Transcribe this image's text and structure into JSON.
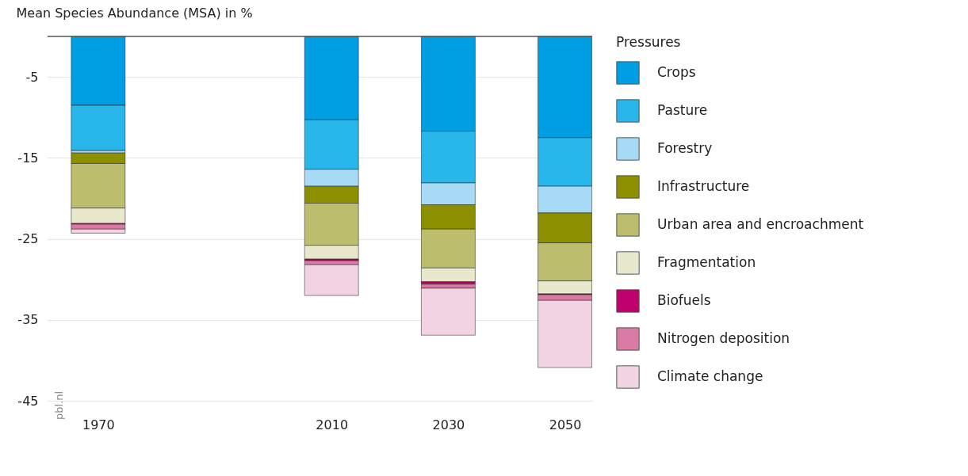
{
  "chart_data": {
    "type": "bar",
    "stacked": true,
    "ylabel": "Mean Species Abundance (MSA) in %",
    "legend_title": "Pressures",
    "x": [
      1970,
      2010,
      2030,
      2050
    ],
    "series": [
      {
        "name": "Crops",
        "color": "#009fe3",
        "values": [
          -8.5,
          -10.3,
          -11.7,
          -12.5
        ]
      },
      {
        "name": "Pasture",
        "color": "#29b6ea",
        "values": [
          -5.6,
          -6.1,
          -6.4,
          -6.0
        ]
      },
      {
        "name": "Forestry",
        "color": "#a6daf5",
        "values": [
          -0.3,
          -2.1,
          -2.7,
          -3.3
        ]
      },
      {
        "name": "Infrastructure",
        "color": "#8c8f00",
        "values": [
          -1.3,
          -2.1,
          -3.0,
          -3.7
        ]
      },
      {
        "name": "Urban area and encroachment",
        "color": "#bdbd6e",
        "values": [
          -5.5,
          -5.2,
          -4.8,
          -4.7
        ]
      },
      {
        "name": "Fragmentation",
        "color": "#e8e8cc",
        "values": [
          -1.9,
          -1.7,
          -1.7,
          -1.6
        ]
      },
      {
        "name": "Biofuels",
        "color": "#c0006d",
        "values": [
          -0.1,
          -0.2,
          -0.3,
          -0.1
        ]
      },
      {
        "name": "Nitrogen deposition",
        "color": "#d97aa5",
        "values": [
          -0.6,
          -0.5,
          -0.5,
          -0.7
        ]
      },
      {
        "name": "Climate change",
        "color": "#f2d3e3",
        "values": [
          -0.5,
          -3.8,
          -5.8,
          -8.3
        ]
      }
    ],
    "xlim": [
      1962,
      2054
    ],
    "xticks": [
      1970,
      2010,
      2030,
      2050
    ],
    "ylim": [
      -45,
      0
    ],
    "yticks": [
      -5,
      -15,
      -25,
      -35,
      -45
    ],
    "grid": "y",
    "legend": "right",
    "ref_lines": [
      {
        "axis": "y",
        "value": 0,
        "color": "#555555"
      }
    ],
    "annotations": [
      "pbl.nl"
    ]
  }
}
